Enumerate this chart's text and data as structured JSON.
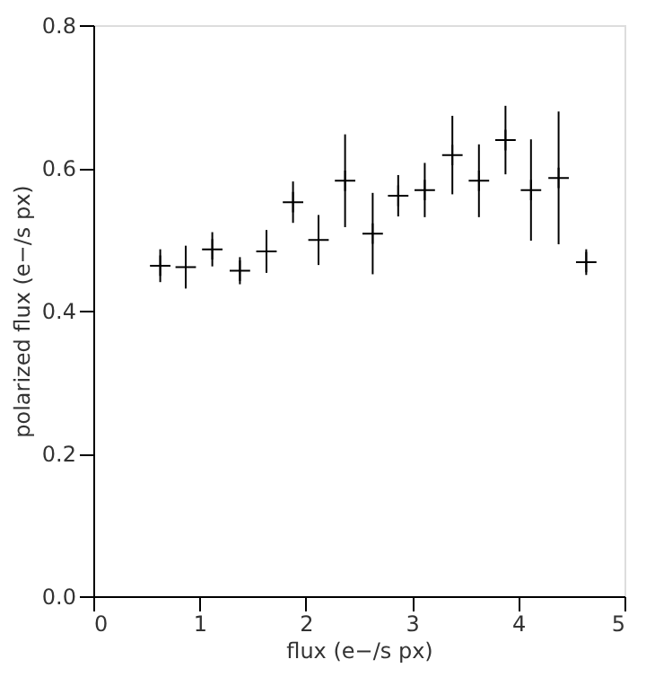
{
  "chart_data": {
    "type": "scatter",
    "xlabel": "flux (e−/s px)",
    "ylabel": "polarized flux (e−/s px)",
    "x": [
      0.63,
      0.87,
      1.12,
      1.38,
      1.63,
      1.88,
      2.12,
      2.37,
      2.63,
      2.87,
      3.12,
      3.38,
      3.63,
      3.88,
      4.12,
      4.38,
      4.64
    ],
    "series": [
      {
        "color": "#000000",
        "values": [
          0.463,
          0.461,
          0.486,
          0.456,
          0.483,
          0.552,
          0.499,
          0.582,
          0.508,
          0.561,
          0.569,
          0.618,
          0.582,
          0.639,
          0.569,
          0.586,
          0.468
        ],
        "errors": [
          0.023,
          0.03,
          0.024,
          0.019,
          0.03,
          0.029,
          0.035,
          0.065,
          0.057,
          0.029,
          0.038,
          0.055,
          0.051,
          0.048,
          0.071,
          0.093,
          0.018
        ]
      }
    ],
    "marker": "cross",
    "xlim": [
      0,
      5
    ],
    "ylim": [
      0.0,
      0.8
    ],
    "xticks": [
      0,
      1,
      2,
      3,
      4,
      5
    ],
    "yticks": [
      {
        "value": 0.0,
        "label": "0.0"
      },
      {
        "value": 0.2,
        "label": "0.2"
      },
      {
        "value": 0.4,
        "label": "0.4"
      },
      {
        "value": 0.6,
        "label": "0.6"
      },
      {
        "value": 0.8,
        "label": "0.8"
      }
    ],
    "grid": false
  }
}
